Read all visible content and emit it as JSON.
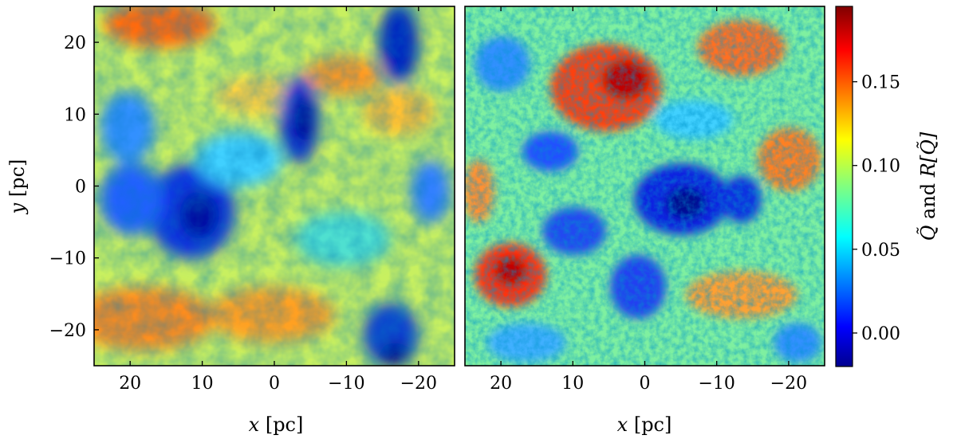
{
  "chart_data": {
    "type": "heatmap",
    "colormap": "jet",
    "panels": [
      {
        "name": "left",
        "xlabel_var": "x",
        "xlabel_unit": "[pc]",
        "ylabel_var": "y",
        "ylabel_unit": "[pc]",
        "xlim": [
          25,
          -25
        ],
        "ylim": [
          -25,
          25
        ],
        "xticks": [
          20,
          10,
          0,
          -10,
          -20
        ],
        "yticks": [
          20,
          10,
          0,
          -10,
          -20
        ],
        "xtick_labels": [
          "20",
          "10",
          "0",
          "−10",
          "−20"
        ],
        "ytick_labels": [
          "20",
          "10",
          "0",
          "−10",
          "−20"
        ]
      },
      {
        "name": "right",
        "xlabel_var": "x",
        "xlabel_unit": "[pc]",
        "xlim": [
          25,
          -25
        ],
        "ylim": [
          -25,
          25
        ],
        "xticks": [
          20,
          10,
          0,
          -10,
          -20
        ],
        "xtick_labels": [
          "20",
          "10",
          "0",
          "−10",
          "−20"
        ]
      }
    ],
    "colorbar": {
      "vmin": -0.02,
      "vmax": 0.195,
      "ticks": [
        0.0,
        0.05,
        0.1,
        0.15
      ],
      "tick_labels": [
        "0.00",
        "0.05",
        "0.10",
        "0.15"
      ],
      "label_q": "Q̃",
      "label_and": "and",
      "label_r": "R[Q̃]"
    }
  }
}
